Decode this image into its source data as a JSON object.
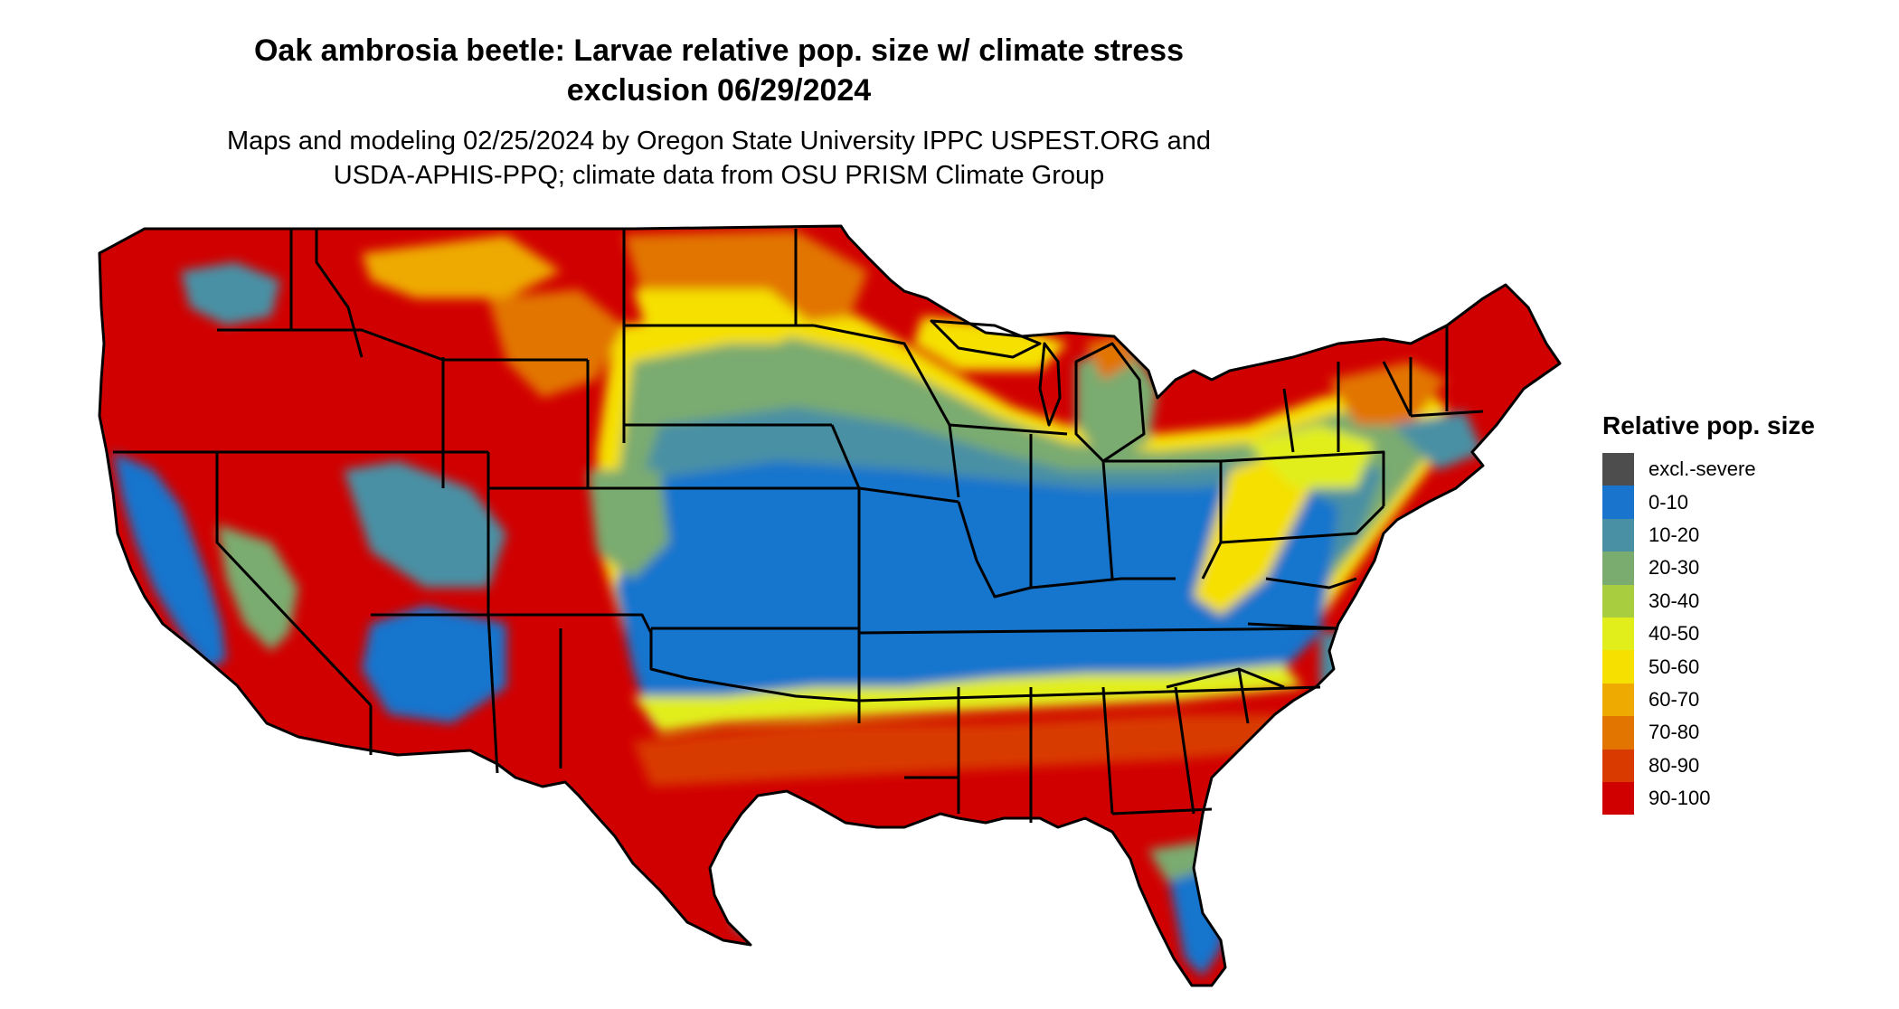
{
  "title_line1": "Oak ambrosia beetle: Larvae relative pop. size w/ climate stress",
  "title_line2": "exclusion 06/29/2024",
  "subtitle_line1": "Maps and modeling 02/25/2024 by Oregon State University IPPC USPEST.ORG and",
  "subtitle_line2": "USDA-APHIS-PPQ; climate data from OSU PRISM Climate Group",
  "legend": {
    "title": "Relative pop. size",
    "items": [
      {
        "label": "excl.-severe",
        "color": "#4d4d4d"
      },
      {
        "label": "0-10",
        "color": "#1874cd"
      },
      {
        "label": "10-20",
        "color": "#4a90a4"
      },
      {
        "label": "20-30",
        "color": "#7aab6f"
      },
      {
        "label": "30-40",
        "color": "#a8cd3f"
      },
      {
        "label": "40-50",
        "color": "#e1ee1c"
      },
      {
        "label": "50-60",
        "color": "#f5e000"
      },
      {
        "label": "60-70",
        "color": "#eeaa00"
      },
      {
        "label": "70-80",
        "color": "#e27500"
      },
      {
        "label": "80-90",
        "color": "#d83a00"
      },
      {
        "label": "90-100",
        "color": "#d10000"
      }
    ]
  }
}
